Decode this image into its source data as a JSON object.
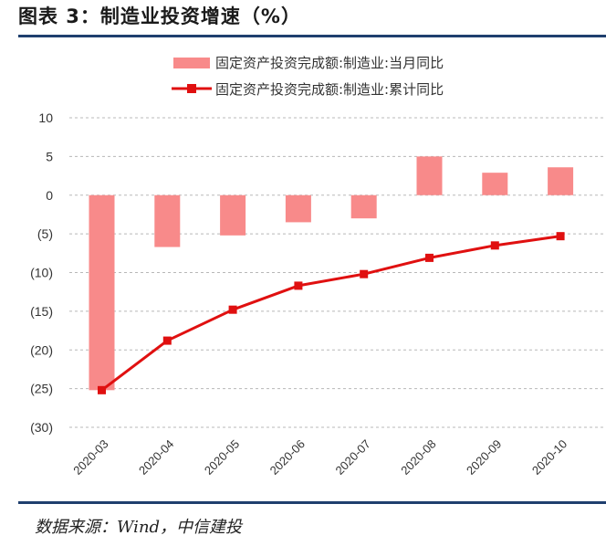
{
  "header": {
    "title": "图表 3：制造业投资增速（%）"
  },
  "footer": {
    "source": "数据来源：Wind，中信建投"
  },
  "colors": {
    "bar": "#f88a8a",
    "line": "#e01010",
    "grid": "#b8b8b8",
    "rule": "#1f3f6e"
  },
  "chart_data": {
    "type": "bar",
    "categories": [
      "2020-03",
      "2020-04",
      "2020-05",
      "2020-06",
      "2020-07",
      "2020-08",
      "2020-09",
      "2020-10"
    ],
    "series": [
      {
        "name": "固定资产投资完成额:制造业:当月同比",
        "type": "bar",
        "values": [
          -25.2,
          -6.7,
          -5.2,
          -3.5,
          -3.0,
          5.0,
          2.9,
          3.6
        ]
      },
      {
        "name": "固定资产投资完成额:制造业:累计同比",
        "type": "line",
        "values": [
          -25.2,
          -18.8,
          -14.8,
          -11.7,
          -10.2,
          -8.1,
          -6.5,
          -5.3
        ]
      }
    ],
    "y_ticks": [
      "10",
      "5",
      "0",
      "(5)",
      "(10)",
      "(15)",
      "(20)",
      "(25)",
      "(30)"
    ],
    "ylim": [
      -30,
      10
    ],
    "grid": true,
    "legend_position": "top-center"
  }
}
